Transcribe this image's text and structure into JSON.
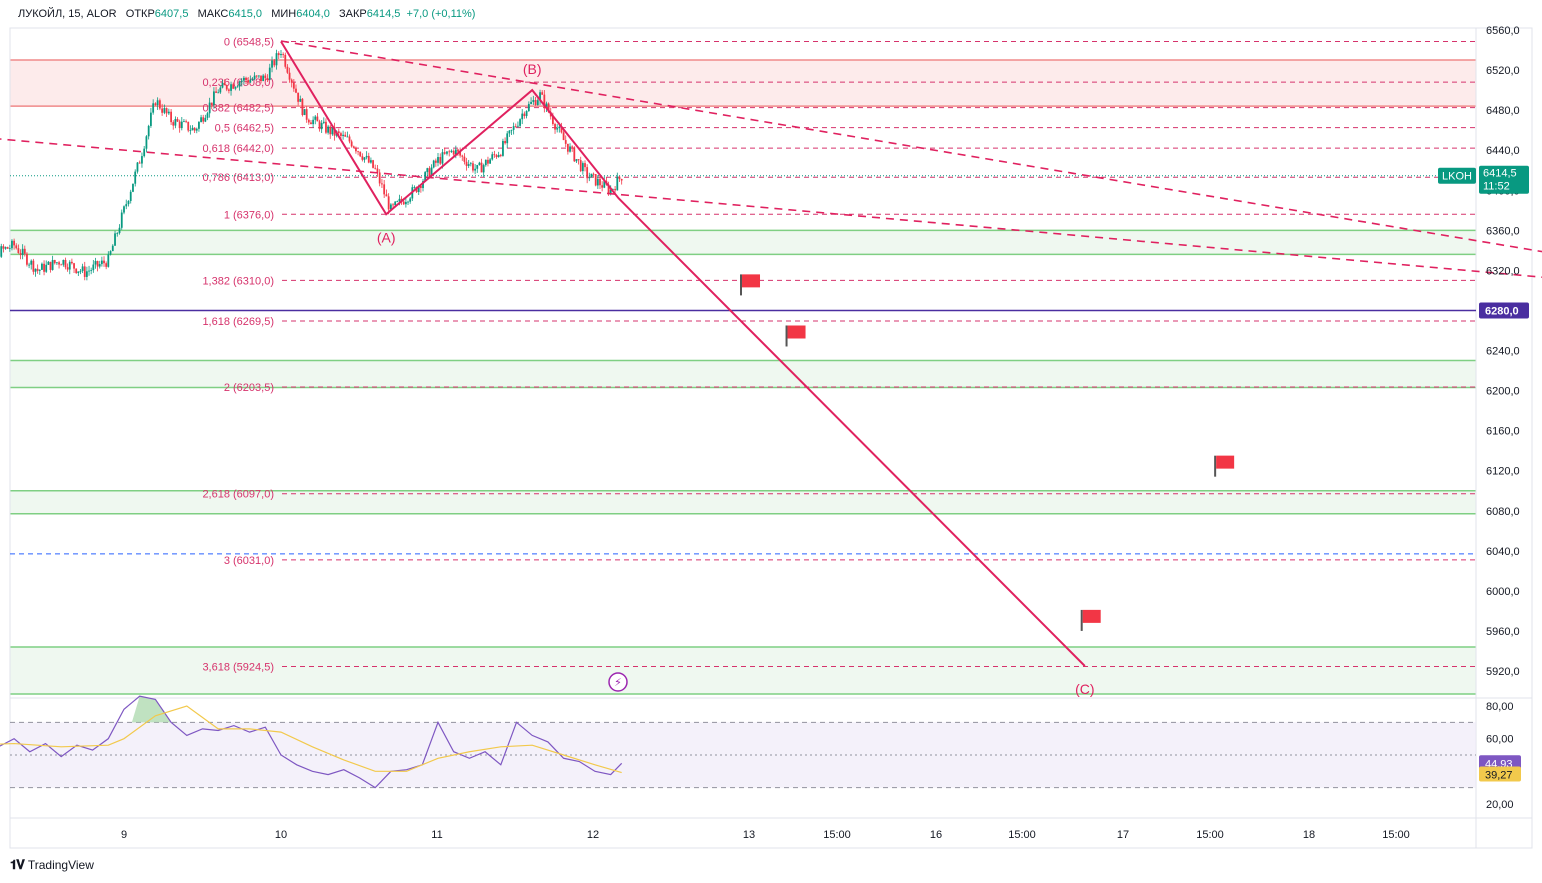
{
  "legend": {
    "symbol": "ЛУКОЙЛ, 15, ALOR",
    "open_label": "ОТКР",
    "open_value": "6407,5",
    "high_label": "МАКС",
    "high_value": "6415,0",
    "low_label": "МИН",
    "low_value": "6404,0",
    "close_label": "ЗАКР",
    "close_value": "6414,5",
    "change": "+7,0 (+0,11%)"
  },
  "brand": "TradingView",
  "colors": {
    "fib": "#d6336c",
    "wave": "#e0215f",
    "zone_red": "#fbdada",
    "zone_green": "#e8f5e9",
    "zone_border_green": "#7fcf83",
    "level_purple": "#4a2ea0",
    "rsi": "#7e57c2",
    "rsi_ma": "#f2c94c",
    "price_tag": "#089981",
    "up": "#089981",
    "down": "#f23645"
  },
  "chart_data": [
    {
      "type": "candlestick",
      "symbol": "ЛУКОЙЛ",
      "timeframe": "15",
      "ohlc_last": {
        "open": 6407.5,
        "high": 6415.0,
        "low": 6404.0,
        "close": 6414.5,
        "change": 7.0,
        "change_pct": 0.11
      },
      "x_tick_labels": [
        "9",
        "10",
        "11",
        "12",
        "13",
        "15:00",
        "16",
        "15:00",
        "17",
        "15:00",
        "18",
        "15:00"
      ],
      "y_tick_labels": [
        "6560,0",
        "6520,0",
        "6480,0",
        "6440,0",
        "6400,0",
        "6360,0",
        "6320,0",
        "6280,0",
        "6240,0",
        "6200,0",
        "6160,0",
        "6120,0",
        "6080,0",
        "6040,0",
        "6000,0",
        "5960,0",
        "5920,0"
      ],
      "ylim": [
        5895,
        6570
      ],
      "price_label": {
        "ticker": "LKOH",
        "price": "6414,5",
        "timer": "11:52"
      },
      "horizontal_level_label": "6280,0",
      "horizontal_level": 6280.0,
      "fib_levels": [
        {
          "ratio": "0",
          "price": "6548,5",
          "value": 6548.5
        },
        {
          "ratio": "0,236",
          "price": "6508,0",
          "value": 6508.0
        },
        {
          "ratio": "0,382",
          "price": "6482,5",
          "value": 6482.5
        },
        {
          "ratio": "0,5",
          "price": "6462,5",
          "value": 6462.5
        },
        {
          "ratio": "0,618",
          "price": "6442,0",
          "value": 6442.0
        },
        {
          "ratio": "0,786",
          "price": "6413,0",
          "value": 6413.0
        },
        {
          "ratio": "1",
          "price": "6376,0",
          "value": 6376.0
        },
        {
          "ratio": "1,382",
          "price": "6310,0",
          "value": 6310.0
        },
        {
          "ratio": "1,618",
          "price": "6269,5",
          "value": 6269.5
        },
        {
          "ratio": "2",
          "price": "6203,5",
          "value": 6203.5
        },
        {
          "ratio": "2,618",
          "price": "6097,0",
          "value": 6097.0
        },
        {
          "ratio": "3",
          "price": "6031,0",
          "value": 6031.0
        },
        {
          "ratio": "3,618",
          "price": "5924,5",
          "value": 5924.5
        }
      ],
      "blue_dashed_level": 6037.0,
      "zones": [
        {
          "color": "red",
          "from": 6484,
          "to": 6530
        },
        {
          "color": "green",
          "from": 6336,
          "to": 6360
        },
        {
          "color": "green",
          "from": 6203,
          "to": 6230
        },
        {
          "color": "green",
          "from": 6077,
          "to": 6100
        },
        {
          "color": "green",
          "from": 5897,
          "to": 5944
        }
      ],
      "wave_labels": [
        "(A)",
        "(B)",
        "(C)"
      ],
      "wave_points": [
        {
          "label": "",
          "t": 10.0,
          "value": 6548.5
        },
        {
          "label": "(A)",
          "t": 10.67,
          "value": 6376.0
        },
        {
          "label": "(B)",
          "t": 11.6,
          "value": 6500.0
        },
        {
          "label": "",
          "t": 12.15,
          "value": 6392.0
        },
        {
          "label": "(C)",
          "t": 15.12,
          "value": 5925.0
        }
      ],
      "trend_lines": [
        {
          "from": {
            "t": 10.0,
            "value": 6549
          },
          "to": {
            "t": 18.9,
            "value": 6316
          }
        },
        {
          "from": {
            "t": 8.08,
            "value": 6453
          },
          "to": {
            "t": 18.9,
            "value": 6301
          }
        }
      ],
      "flags": [
        {
          "t": 12.93,
          "value": 6307
        },
        {
          "t": 13.22,
          "value": 6256
        },
        {
          "t": 15.95,
          "value": 6126
        },
        {
          "t": 15.1,
          "value": 5972
        }
      ],
      "series": [
        {
          "name": "",
          "t": [
            8.0,
            8.15,
            8.3,
            8.45,
            8.6,
            8.75,
            8.9,
            9.0,
            9.1,
            9.2,
            9.3,
            9.45,
            9.6,
            9.75,
            9.9,
            10.0,
            10.15,
            10.3,
            10.45,
            10.6,
            10.7,
            10.85,
            11.0,
            11.1,
            11.25,
            11.4,
            11.55,
            11.65,
            11.8,
            11.95,
            12.1,
            12.17
          ],
          "close": [
            6310,
            6335,
            6345,
            6320,
            6330,
            6318,
            6330,
            6380,
            6430,
            6490,
            6470,
            6460,
            6500,
            6510,
            6512,
            6540,
            6475,
            6460,
            6448,
            6420,
            6380,
            6400,
            6430,
            6440,
            6420,
            6440,
            6480,
            6495,
            6450,
            6415,
            6400,
            6414.5
          ]
        }
      ]
    },
    {
      "type": "line",
      "name": "RSI",
      "ylim": [
        10,
        90
      ],
      "y_tick_labels": [
        "80,00",
        "60,00",
        "40,00",
        "20,00"
      ],
      "bands": [
        70,
        50,
        30
      ],
      "value_labels": [
        "44,93",
        "39,27"
      ],
      "series": [
        {
          "name": "",
          "t": [
            8.0,
            8.1,
            8.2,
            8.3,
            8.4,
            8.5,
            8.6,
            8.7,
            8.8,
            8.9,
            9.0,
            9.1,
            9.2,
            9.3,
            9.4,
            9.5,
            9.6,
            9.7,
            9.8,
            9.9,
            10.0,
            10.1,
            10.2,
            10.3,
            10.4,
            10.5,
            10.6,
            10.7,
            10.8,
            10.9,
            11.0,
            11.1,
            11.2,
            11.3,
            11.4,
            11.5,
            11.6,
            11.7,
            11.8,
            11.9,
            12.0,
            12.1,
            12.17
          ],
          "values": [
            58,
            62,
            55,
            60,
            52,
            57,
            49,
            56,
            53,
            60,
            78,
            86,
            84,
            70,
            62,
            66,
            65,
            68,
            64,
            67,
            50,
            44,
            40,
            38,
            41,
            36,
            30,
            40,
            41,
            44,
            70,
            52,
            48,
            52,
            44,
            70,
            62,
            58,
            48,
            46,
            40,
            38,
            44.93
          ]
        },
        {
          "name": "",
          "t": [
            8.0,
            8.3,
            8.6,
            8.9,
            9.0,
            9.2,
            9.4,
            9.6,
            9.8,
            10.0,
            10.2,
            10.4,
            10.6,
            10.8,
            11.0,
            11.2,
            11.4,
            11.6,
            11.8,
            12.0,
            12.17
          ],
          "values": [
            56,
            57,
            55,
            56,
            60,
            74,
            80,
            66,
            66,
            64,
            55,
            47,
            40,
            40,
            48,
            52,
            55,
            56,
            50,
            44,
            39.27
          ]
        }
      ]
    }
  ]
}
